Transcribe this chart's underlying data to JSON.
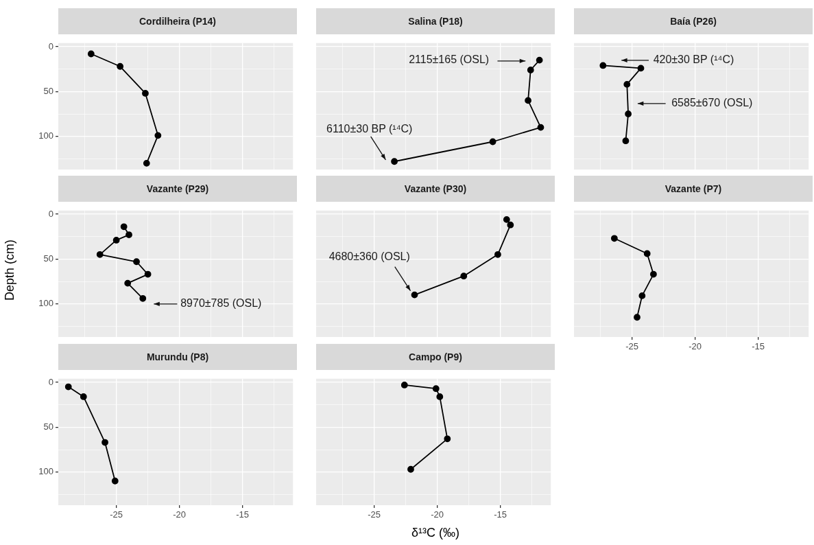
{
  "chart_data": [
    {
      "type": "line",
      "title": "Cordilheira (P14)",
      "marker": "circle",
      "grid": true,
      "tick_labels": "y",
      "xlim": [
        -29.6,
        -11
      ],
      "ylim": [
        137,
        -4
      ],
      "xticks": [
        {
          "value": -27.5,
          "label": null
        },
        -25,
        {
          "value": -22.5,
          "label": null
        },
        -20,
        {
          "value": -17.5,
          "label": null
        },
        -15,
        {
          "value": -12.5,
          "label": null
        }
      ],
      "yticks": [
        0,
        {
          "value": 25,
          "label": null
        },
        50,
        {
          "value": 75,
          "label": null
        },
        100,
        {
          "value": 125,
          "label": null
        }
      ],
      "series": [
        {
          "color": "#000000",
          "x": [
            -27.0,
            -24.7,
            -22.7,
            -21.7,
            -22.6
          ],
          "values": [
            8,
            22,
            52,
            99,
            130
          ]
        }
      ]
    },
    {
      "type": "line",
      "title": "Salina (P18)",
      "marker": "circle",
      "grid": true,
      "tick_labels": false,
      "xlim": [
        -29.6,
        -11
      ],
      "ylim": [
        137,
        -4
      ],
      "xticks": [
        {
          "value": -27.5,
          "label": null
        },
        -25,
        {
          "value": -22.5,
          "label": null
        },
        -20,
        {
          "value": -17.5,
          "label": null
        },
        -15,
        {
          "value": -12.5,
          "label": null
        }
      ],
      "yticks": [
        0,
        {
          "value": 25,
          "label": null
        },
        50,
        {
          "value": 75,
          "label": null
        },
        100,
        {
          "value": 125,
          "label": null
        }
      ],
      "series": [
        {
          "color": "#000000",
          "x": [
            -11.9,
            -12.6,
            -12.8,
            -11.8,
            -15.6,
            -23.4
          ],
          "values": [
            15,
            26,
            60,
            90,
            106,
            128
          ]
        }
      ],
      "annotations": [
        "2115±165 (OSL)",
        "6110±30 BP (¹⁴C)"
      ]
    },
    {
      "type": "line",
      "title": "Baía (P26)",
      "marker": "circle",
      "grid": true,
      "tick_labels": false,
      "xlim": [
        -29.6,
        -11
      ],
      "ylim": [
        137,
        -4
      ],
      "xticks": [
        {
          "value": -27.5,
          "label": null
        },
        -25,
        {
          "value": -22.5,
          "label": null
        },
        -20,
        {
          "value": -17.5,
          "label": null
        },
        -15,
        {
          "value": -12.5,
          "label": null
        }
      ],
      "yticks": [
        0,
        {
          "value": 25,
          "label": null
        },
        50,
        {
          "value": 75,
          "label": null
        },
        100,
        {
          "value": 125,
          "label": null
        }
      ],
      "series": [
        {
          "color": "#000000",
          "x": [
            -27.3,
            -24.3,
            -25.4,
            -25.3,
            -25.5
          ],
          "values": [
            21,
            24,
            42,
            75,
            105
          ]
        }
      ],
      "annotations": [
        "420±30 BP (¹⁴C)",
        "6585±670 (OSL)"
      ]
    },
    {
      "type": "line",
      "title": "Vazante (P29)",
      "ylabel": "Depth (cm)",
      "marker": "circle",
      "grid": true,
      "tick_labels": "y",
      "xlim": [
        -29.6,
        -11
      ],
      "ylim": [
        137,
        -4
      ],
      "xticks": [
        {
          "value": -27.5,
          "label": null
        },
        -25,
        {
          "value": -22.5,
          "label": null
        },
        -20,
        {
          "value": -17.5,
          "label": null
        },
        -15,
        {
          "value": -12.5,
          "label": null
        }
      ],
      "yticks": [
        0,
        {
          "value": 25,
          "label": null
        },
        50,
        {
          "value": 75,
          "label": null
        },
        100,
        {
          "value": 125,
          "label": null
        }
      ],
      "series": [
        {
          "color": "#000000",
          "x": [
            -24.4,
            -24.0,
            -25.0,
            -26.3,
            -23.4,
            -22.5,
            -24.1,
            -22.9
          ],
          "values": [
            14,
            23,
            29,
            45,
            53,
            67,
            77,
            94
          ]
        }
      ],
      "annotations": [
        "8970±785 (OSL)"
      ]
    },
    {
      "type": "line",
      "title": "Vazante (P30)",
      "marker": "circle",
      "grid": true,
      "tick_labels": false,
      "xlim": [
        -29.6,
        -11
      ],
      "ylim": [
        137,
        -4
      ],
      "xticks": [
        {
          "value": -27.5,
          "label": null
        },
        -25,
        {
          "value": -22.5,
          "label": null
        },
        -20,
        {
          "value": -17.5,
          "label": null
        },
        -15,
        {
          "value": -12.5,
          "label": null
        }
      ],
      "yticks": [
        0,
        {
          "value": 25,
          "label": null
        },
        50,
        {
          "value": 75,
          "label": null
        },
        100,
        {
          "value": 125,
          "label": null
        }
      ],
      "series": [
        {
          "color": "#000000",
          "x": [
            -14.5,
            -14.2,
            -15.2,
            -17.9,
            -21.8
          ],
          "values": [
            6,
            12,
            45,
            69,
            90
          ]
        }
      ],
      "annotations": [
        {
          "text": "4680±360 (OSL)",
          "x": -21.8,
          "y": 90
        }
      ]
    },
    {
      "type": "line",
      "title": "Vazante (P7)",
      "marker": "circle",
      "grid": true,
      "tick_labels": "x",
      "xlim": [
        -29.6,
        -11
      ],
      "ylim": [
        137,
        -4
      ],
      "xticks": [
        {
          "value": -27.5,
          "label": null
        },
        -25,
        {
          "value": -22.5,
          "label": null
        },
        -20,
        {
          "value": -17.5,
          "label": null
        },
        -15,
        {
          "value": -12.5,
          "label": null
        }
      ],
      "yticks": [
        0,
        {
          "value": 25,
          "label": null
        },
        50,
        {
          "value": 75,
          "label": null
        },
        100,
        {
          "value": 125,
          "label": null
        }
      ],
      "series": [
        {
          "color": "#000000",
          "x": [
            -26.4,
            -23.8,
            -23.3,
            -24.2,
            -24.6
          ],
          "values": [
            27,
            44,
            67,
            91,
            115
          ]
        }
      ]
    },
    {
      "type": "line",
      "title": "Murundu (P8)",
      "marker": "circle",
      "grid": true,
      "xlim": [
        -29.6,
        -11
      ],
      "ylim": [
        137,
        -4
      ],
      "xticks": [
        {
          "value": -27.5,
          "label": null
        },
        -25,
        {
          "value": -22.5,
          "label": null
        },
        -20,
        {
          "value": -17.5,
          "label": null
        },
        -15,
        {
          "value": -12.5,
          "label": null
        }
      ],
      "yticks": [
        0,
        {
          "value": 25,
          "label": null
        },
        50,
        {
          "value": 75,
          "label": null
        },
        100,
        {
          "value": 125,
          "label": null
        }
      ],
      "series": [
        {
          "color": "#000000",
          "x": [
            -28.8,
            -27.6,
            -25.9,
            -25.1
          ],
          "values": [
            5,
            16,
            67,
            110
          ]
        }
      ]
    },
    {
      "type": "line",
      "title": "Campo (P9)",
      "xlabel": "δ¹³C (‰)",
      "marker": "circle",
      "grid": true,
      "tick_labels": "x",
      "xlim": [
        -29.6,
        -11
      ],
      "ylim": [
        137,
        -4
      ],
      "xticks": [
        {
          "value": -27.5,
          "label": null
        },
        -25,
        {
          "value": -22.5,
          "label": null
        },
        -20,
        {
          "value": -17.5,
          "label": null
        },
        -15,
        {
          "value": -12.5,
          "label": null
        }
      ],
      "yticks": [
        0,
        {
          "value": 25,
          "label": null
        },
        50,
        {
          "value": 75,
          "label": null
        },
        100,
        {
          "value": 125,
          "label": null
        }
      ],
      "series": [
        {
          "color": "#000000",
          "x": [
            -22.6,
            -20.1,
            -19.8,
            -19.2,
            -22.1
          ],
          "values": [
            3,
            7,
            16,
            63,
            97
          ]
        }
      ]
    }
  ]
}
